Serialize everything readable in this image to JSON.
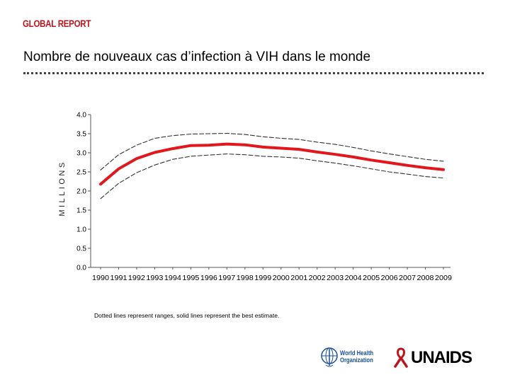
{
  "header": {
    "brand": "GLOBAL REPORT",
    "title": "Nombre de nouveaux cas d’infection à VIH dans le monde"
  },
  "chart_data": {
    "type": "line",
    "title": "Nombre de nouveaux cas d’infection à VIH dans le monde",
    "xlabel": "",
    "ylabel": "MILLIONS",
    "ylim": [
      0,
      4.0
    ],
    "y_ticks": [
      "0.0",
      "0.5",
      "1.0",
      "1.5",
      "2.0",
      "2.5",
      "3.0",
      "3.5",
      "4.0"
    ],
    "x": [
      "1990",
      "1991",
      "1992",
      "1993",
      "1994",
      "1995",
      "1996",
      "1997",
      "1998",
      "1999",
      "2000",
      "2001",
      "2002",
      "2003",
      "2004",
      "2005",
      "2006",
      "2007",
      "2008",
      "2009"
    ],
    "series": [
      {
        "name": "Best estimate",
        "style": "solid",
        "color": "#e3161b",
        "values": [
          2.18,
          2.58,
          2.85,
          3.01,
          3.11,
          3.19,
          3.2,
          3.23,
          3.21,
          3.15,
          3.12,
          3.09,
          3.02,
          2.96,
          2.89,
          2.81,
          2.74,
          2.67,
          2.61,
          2.56
        ]
      },
      {
        "name": "Upper range",
        "style": "dotted",
        "color": "#333333",
        "values": [
          2.55,
          2.95,
          3.2,
          3.38,
          3.45,
          3.49,
          3.5,
          3.51,
          3.48,
          3.42,
          3.38,
          3.35,
          3.28,
          3.22,
          3.14,
          3.05,
          2.97,
          2.9,
          2.83,
          2.78
        ]
      },
      {
        "name": "Lower range",
        "style": "dotted",
        "color": "#333333",
        "values": [
          1.8,
          2.2,
          2.48,
          2.68,
          2.83,
          2.91,
          2.94,
          2.97,
          2.95,
          2.91,
          2.89,
          2.86,
          2.79,
          2.73,
          2.66,
          2.58,
          2.5,
          2.44,
          2.38,
          2.34
        ]
      }
    ],
    "note": "Dotted lines represent ranges, solid lines represent the best estimate."
  },
  "footer": {
    "who_logo": "World Health Organization",
    "who_line1": "World Health",
    "who_line2": "Organization",
    "unaids_logo": "UNAIDS"
  },
  "colors": {
    "brand": "#c0141c",
    "estimate": "#e3161b",
    "range": "#333333"
  }
}
